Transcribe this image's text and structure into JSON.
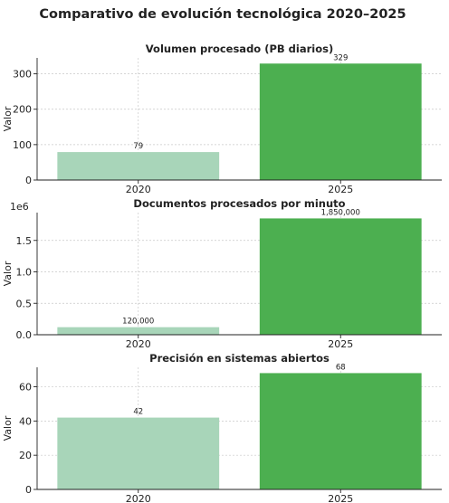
{
  "figure": {
    "title": "Comparativo de evolución tecnológica 2020–2025"
  },
  "colors": {
    "bar_2020": "#a8d5b9",
    "bar_2025": "#4caf50",
    "axis": "#222222",
    "grid": "#c8c8c8",
    "text": "#222222"
  },
  "chart_data": [
    {
      "type": "bar",
      "title": "Volumen procesado (PB diarios)",
      "categories": [
        "2020",
        "2025"
      ],
      "values": [
        79,
        329
      ],
      "value_labels": [
        "79",
        "329"
      ],
      "xlabel": "",
      "ylabel": "Valor",
      "ylim": [
        0,
        345
      ],
      "yticks": [
        0,
        100,
        200,
        300
      ],
      "ytick_labels": [
        "0",
        "100",
        "200",
        "300"
      ],
      "offset_label": "",
      "grid": true,
      "legend": "none"
    },
    {
      "type": "bar",
      "title": "Documentos procesados por minuto",
      "categories": [
        "2020",
        "2025"
      ],
      "values": [
        120000,
        1850000
      ],
      "value_labels": [
        "120,000",
        "1,850,000"
      ],
      "xlabel": "",
      "ylabel": "Valor",
      "ylim": [
        0,
        1942500
      ],
      "yticks": [
        0,
        500000,
        1000000,
        1500000
      ],
      "ytick_labels": [
        "0.0",
        "0.5",
        "1.0",
        "1.5"
      ],
      "offset_label": "1e6",
      "grid": true,
      "legend": "none"
    },
    {
      "type": "bar",
      "title": "Precisión en sistemas abiertos",
      "categories": [
        "2020",
        "2025"
      ],
      "values": [
        42,
        68
      ],
      "value_labels": [
        "42",
        "68"
      ],
      "xlabel": "",
      "ylabel": "Valor",
      "ylim": [
        0,
        71.4
      ],
      "yticks": [
        0,
        20,
        40,
        60
      ],
      "ytick_labels": [
        "0",
        "20",
        "40",
        "60"
      ],
      "offset_label": "",
      "grid": true,
      "legend": "none"
    }
  ]
}
